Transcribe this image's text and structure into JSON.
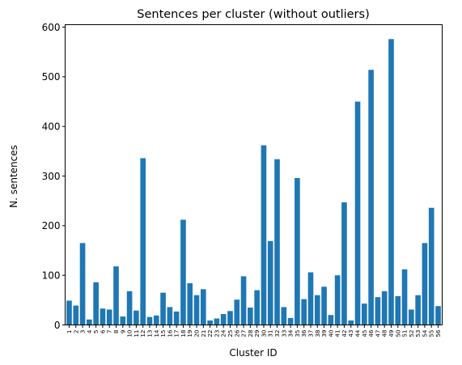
{
  "chart_data": {
    "type": "bar",
    "title": "Sentences per cluster (without outliers)",
    "xlabel": "Cluster ID",
    "ylabel": "N. sentences",
    "ylim": [
      0,
      605
    ],
    "yticks": [
      0,
      100,
      200,
      300,
      400,
      500,
      600
    ],
    "grid": false,
    "bar_color": "#1f77b4",
    "categories": [
      "1",
      "2",
      "3",
      "4",
      "5",
      "6",
      "7",
      "8",
      "9",
      "10",
      "11",
      "12",
      "13",
      "14",
      "15",
      "16",
      "17",
      "18",
      "19",
      "20",
      "21",
      "22",
      "23",
      "24",
      "25",
      "26",
      "27",
      "28",
      "29",
      "30",
      "31",
      "32",
      "33",
      "34",
      "35",
      "36",
      "37",
      "38",
      "39",
      "40",
      "41",
      "42",
      "43",
      "44",
      "45",
      "46",
      "47",
      "48",
      "49",
      "50",
      "51",
      "52",
      "53",
      "54",
      "55",
      "56"
    ],
    "values": [
      49,
      39,
      165,
      11,
      86,
      33,
      31,
      118,
      17,
      68,
      29,
      336,
      16,
      19,
      65,
      36,
      27,
      212,
      84,
      60,
      72,
      9,
      13,
      22,
      28,
      51,
      98,
      35,
      70,
      362,
      169,
      334,
      36,
      14,
      296,
      52,
      106,
      60,
      77,
      20,
      100,
      247,
      9,
      450,
      43,
      514,
      56,
      68,
      576,
      58,
      112,
      31,
      60,
      165,
      236,
      38
    ]
  }
}
